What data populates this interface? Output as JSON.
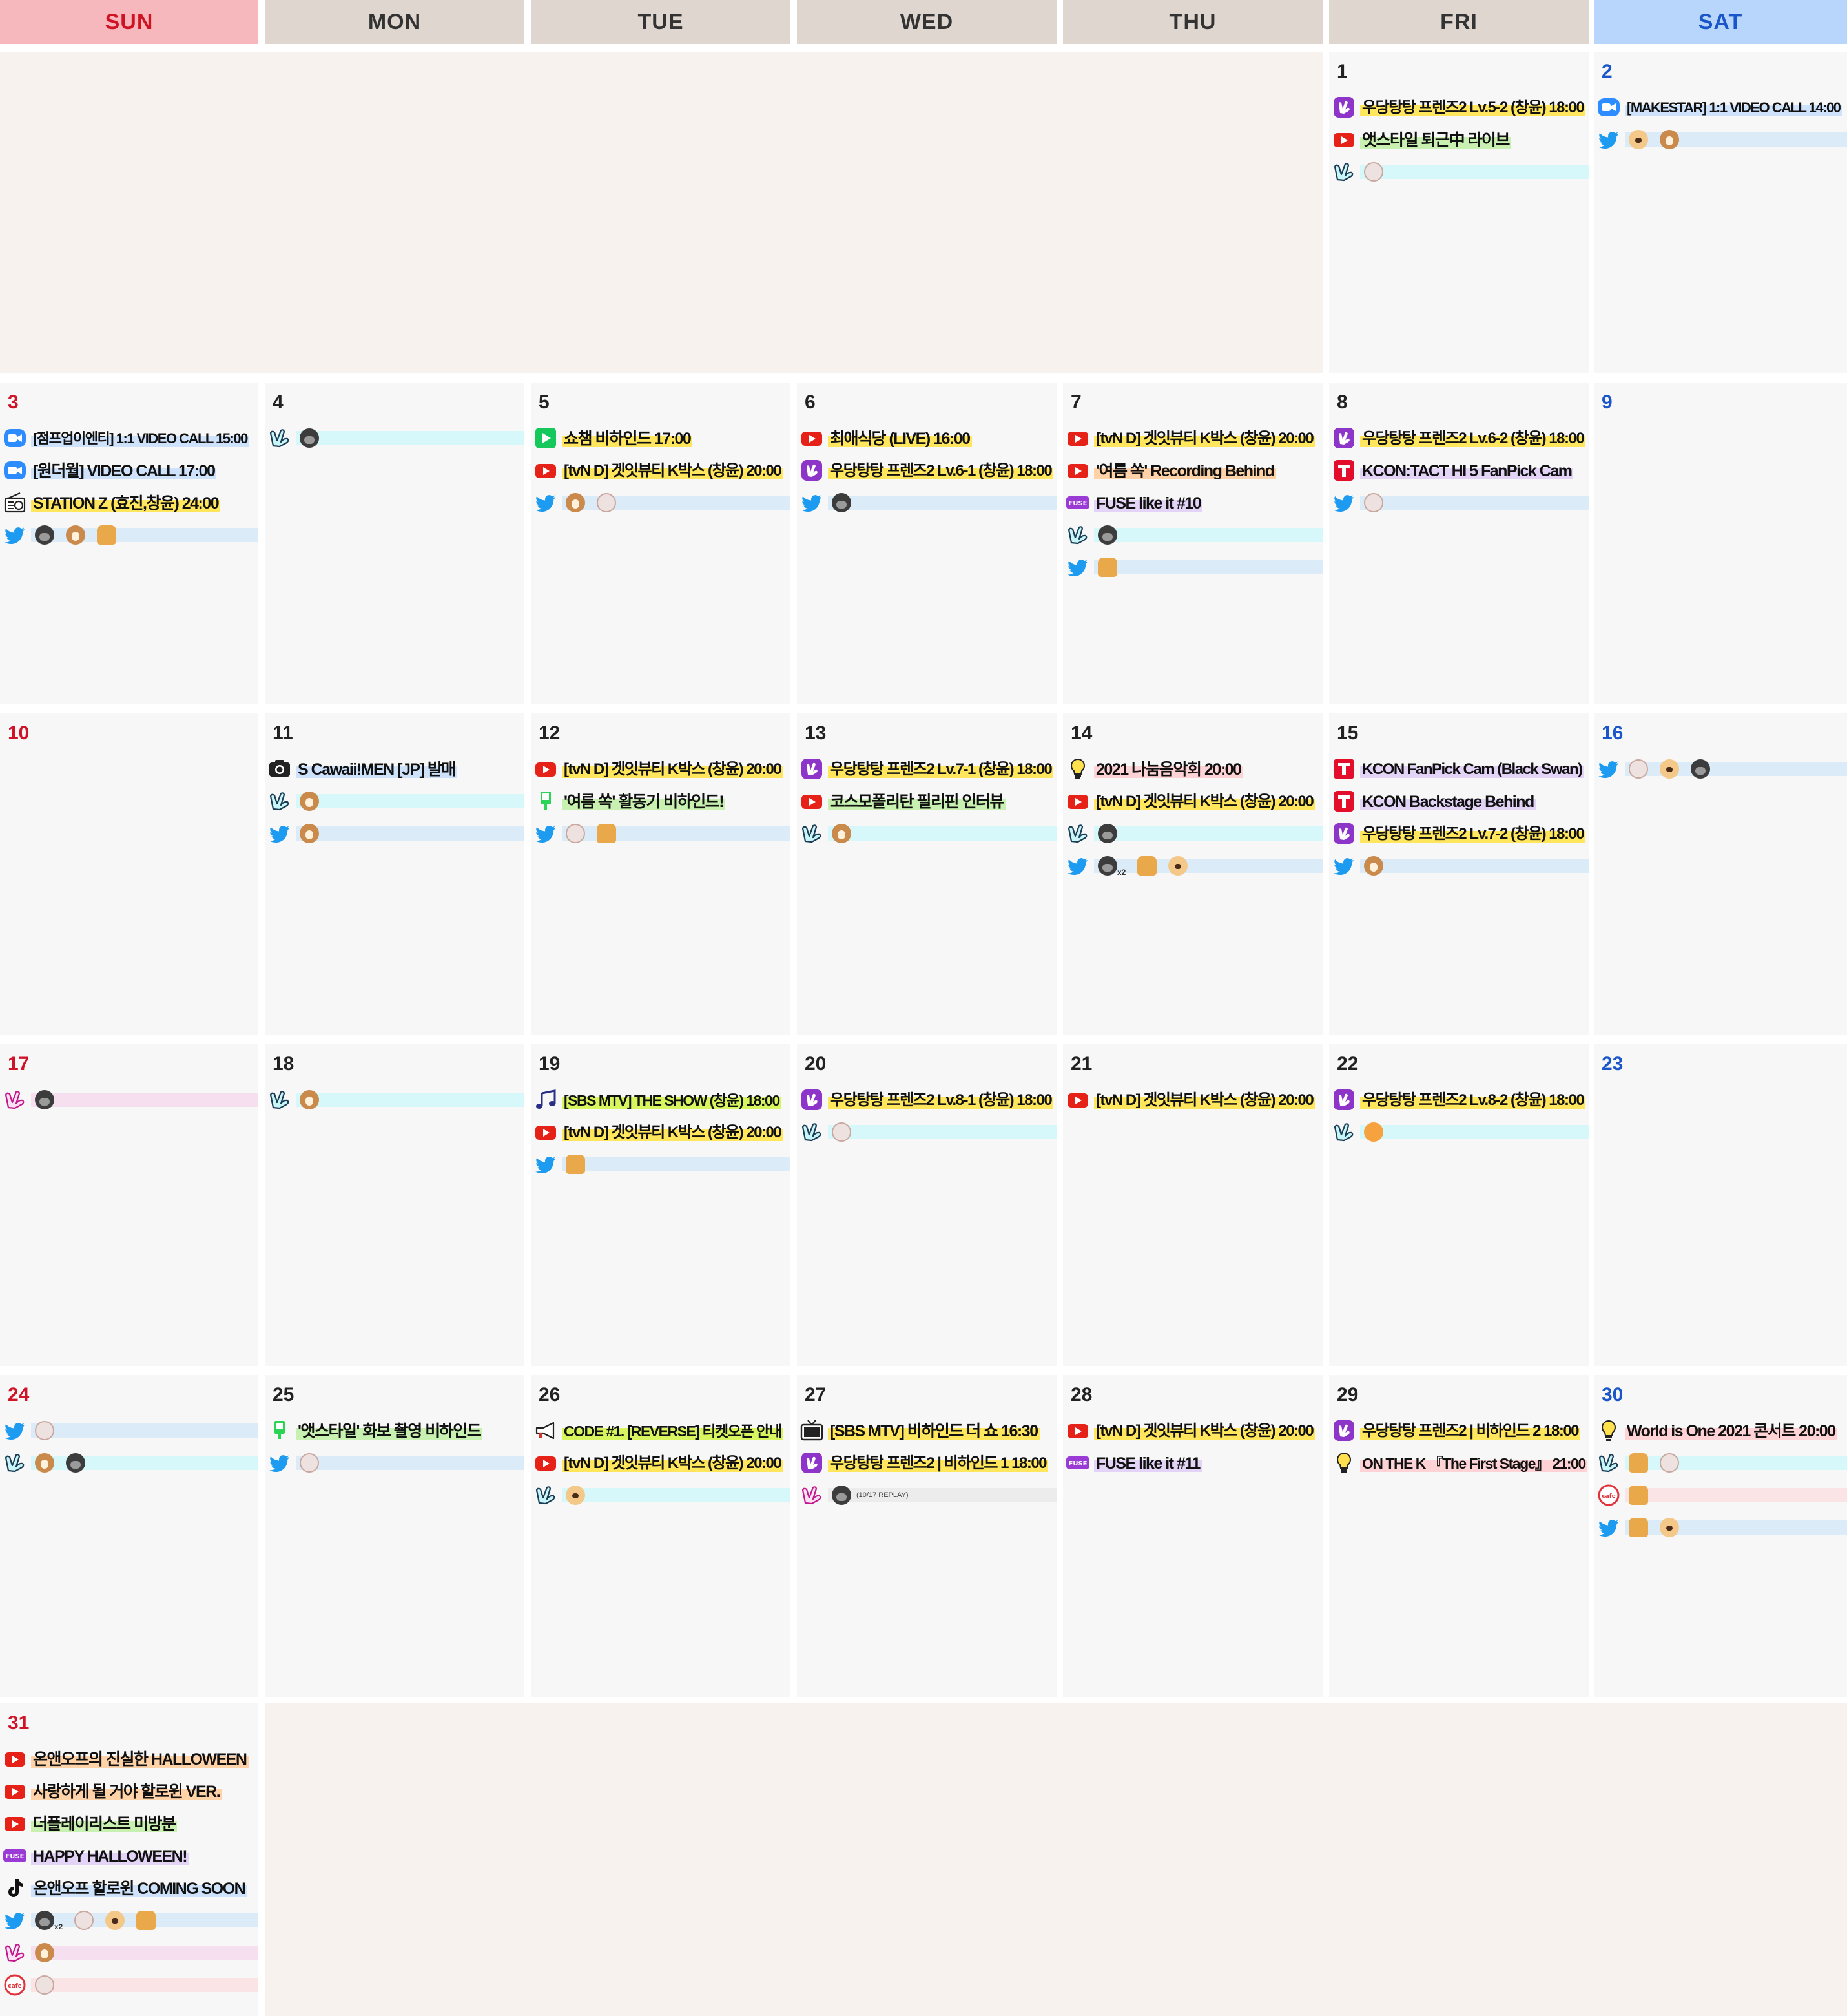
{
  "weekdays": [
    {
      "label": "SUN",
      "style": "sun"
    },
    {
      "label": "MON",
      "style": "plain"
    },
    {
      "label": "TUE",
      "style": "plain"
    },
    {
      "label": "WED",
      "style": "plain"
    },
    {
      "label": "THU",
      "style": "plain"
    },
    {
      "label": "FRI",
      "style": "plain"
    },
    {
      "label": "SAT",
      "style": "sat"
    }
  ],
  "colors": {
    "sunday": "#d01323",
    "saturday": "#1a56c9",
    "header_bg": "#e0d6d0",
    "sun_header_bg": "#f7b8bd",
    "sat_header_bg": "#b8d6fb"
  },
  "weeks": [
    {
      "days": [
        null,
        null,
        null,
        null,
        null,
        {
          "day": "1",
          "events": [
            {
              "icon": "vlive-plus-icon",
              "text": "우당탕탕 프렌즈2 Lv.5-2 (창윤) 18:00",
              "hl": "yellow"
            },
            {
              "icon": "youtube-icon",
              "text": "앳스타일 퇴근中 라이브",
              "hl": "green"
            },
            {
              "icon": "vlive-icon",
              "bar": "vl",
              "emojis": [
                "cat"
              ]
            }
          ]
        },
        {
          "day": "2",
          "events": [
            {
              "icon": "zoom-icon",
              "text": "[MAKESTAR] 1:1 VIDEO CALL 14:00",
              "hl": "blue"
            },
            {
              "icon": "twitter-icon",
              "bar": "tw",
              "emojis": [
                "dog",
                "deer"
              ]
            }
          ]
        }
      ]
    },
    {
      "days": [
        {
          "day": "3",
          "events": [
            {
              "icon": "zoom-icon",
              "text": "[점프업이엔티] 1:1 VIDEO CALL 15:00",
              "hl": "blue"
            },
            {
              "icon": "zoom-icon",
              "text": "[원더월] VIDEO CALL 17:00",
              "hl": "blue"
            },
            {
              "icon": "radio-icon",
              "text": "STATION Z (효진,창윤) 24:00",
              "hl": "yellow"
            },
            {
              "icon": "twitter-icon",
              "bar": "tw",
              "emojis": [
                "gorilla",
                "deer",
                "bread"
              ]
            }
          ]
        },
        {
          "day": "4",
          "events": [
            {
              "icon": "vlive-icon",
              "bar": "vl",
              "emojis": [
                "gorilla"
              ]
            }
          ]
        },
        {
          "day": "5",
          "events": [
            {
              "icon": "naver-now-icon",
              "text": "쇼챔 비하인드 17:00",
              "hl": "yellow"
            },
            {
              "icon": "youtube-icon",
              "text": "[tvN D] 겟잇뷰티 K박스 (창윤) 20:00",
              "hl": "yellow"
            },
            {
              "icon": "twitter-icon",
              "bar": "tw",
              "emojis": [
                "deer",
                "cat"
              ]
            }
          ]
        },
        {
          "day": "6",
          "events": [
            {
              "icon": "youtube-icon",
              "text": "최애식당 (LIVE) 16:00",
              "hl": "yellow"
            },
            {
              "icon": "vlive-plus-icon",
              "text": "우당탕탕 프렌즈2 Lv.6-1 (창윤) 18:00",
              "hl": "yellow"
            },
            {
              "icon": "twitter-icon",
              "bar": "tw",
              "emojis": [
                "gorilla"
              ]
            }
          ]
        },
        {
          "day": "7",
          "events": [
            {
              "icon": "youtube-icon",
              "text": "[tvN D] 겟잇뷰티 K박스 (창윤) 20:00",
              "hl": "yellow"
            },
            {
              "icon": "youtube-icon",
              "text": "'여름 쏙' Recording Behind",
              "hl": "orange"
            },
            {
              "icon": "fuse-icon",
              "text": "FUSE like it #10",
              "hl": "purple"
            },
            {
              "icon": "vlive-icon",
              "bar": "vl",
              "emojis": [
                "gorilla"
              ]
            },
            {
              "icon": "twitter-icon",
              "bar": "tw",
              "emojis": [
                "bread"
              ]
            }
          ]
        },
        {
          "day": "8",
          "events": [
            {
              "icon": "vlive-plus-icon",
              "text": "우당탕탕 프렌즈2 Lv.6-2 (창윤) 18:00",
              "hl": "yellow"
            },
            {
              "icon": "tving-icon",
              "text": "KCON:TACT HI 5 FanPick Cam",
              "hl": "purple"
            },
            {
              "icon": "twitter-icon",
              "bar": "tw",
              "emojis": [
                "cat"
              ]
            }
          ]
        },
        {
          "day": "9",
          "events": []
        }
      ]
    },
    {
      "days": [
        {
          "day": "10",
          "events": []
        },
        {
          "day": "11",
          "events": [
            {
              "icon": "camera-icon",
              "text": "S Cawaii!MEN [JP] 발매",
              "hl": "blue"
            },
            {
              "icon": "vlive-icon",
              "bar": "vl",
              "emojis": [
                "deer"
              ]
            },
            {
              "icon": "twitter-icon",
              "bar": "tw",
              "emojis": [
                "deer"
              ]
            }
          ]
        },
        {
          "day": "12",
          "events": [
            {
              "icon": "youtube-icon",
              "text": "[tvN D] 겟잇뷰티 K박스 (창윤) 20:00",
              "hl": "yellow"
            },
            {
              "icon": "naver-tv-icon",
              "text": "'여름 쏙' 활동기 비하인드!",
              "hl": "green"
            },
            {
              "icon": "twitter-icon",
              "bar": "tw",
              "emojis": [
                "cat",
                "bread"
              ]
            }
          ]
        },
        {
          "day": "13",
          "events": [
            {
              "icon": "vlive-plus-icon",
              "text": "우당탕탕 프렌즈2 Lv.7-1 (창윤) 18:00",
              "hl": "yellow"
            },
            {
              "icon": "youtube-icon",
              "text": "코스모폴리탄 필리핀 인터뷰",
              "hl": "green"
            },
            {
              "icon": "vlive-icon",
              "bar": "vl",
              "emojis": [
                "deer"
              ]
            }
          ]
        },
        {
          "day": "14",
          "events": [
            {
              "icon": "bulb-icon",
              "text": "2021 나눔음악회 20:00",
              "hl": "pink"
            },
            {
              "icon": "youtube-icon",
              "text": "[tvN D] 겟잇뷰티 K박스 (창윤) 20:00",
              "hl": "yellow"
            },
            {
              "icon": "vlive-icon",
              "bar": "vl",
              "emojis": [
                "gorilla"
              ]
            },
            {
              "icon": "twitter-icon",
              "bar": "tw",
              "emojis": [
                "gorilla",
                "bread",
                "dog"
              ],
              "x2": "x2"
            }
          ]
        },
        {
          "day": "15",
          "events": [
            {
              "icon": "tving-icon",
              "text": "KCON FanPick Cam (Black Swan)",
              "hl": "purple"
            },
            {
              "icon": "tving-icon",
              "text": "KCON Backstage Behind",
              "hl": "purple"
            },
            {
              "icon": "vlive-plus-icon",
              "text": "우당탕탕 프렌즈2 Lv.7-2 (창윤) 18:00",
              "hl": "yellow"
            },
            {
              "icon": "twitter-icon",
              "bar": "tw",
              "emojis": [
                "deer"
              ]
            }
          ]
        },
        {
          "day": "16",
          "events": [
            {
              "icon": "twitter-icon",
              "bar": "tw",
              "emojis": [
                "cat",
                "dog",
                "gorilla"
              ]
            }
          ]
        }
      ]
    },
    {
      "days": [
        {
          "day": "17",
          "events": [
            {
              "icon": "vlive-star-icon",
              "bar": "star",
              "emojis": [
                "gorilla"
              ]
            }
          ]
        },
        {
          "day": "18",
          "events": [
            {
              "icon": "vlive-icon",
              "bar": "vl",
              "emojis": [
                "deer"
              ]
            }
          ]
        },
        {
          "day": "19",
          "events": [
            {
              "icon": "music-icon",
              "text": "[SBS MTV] THE SHOW (창윤) 18:00",
              "hl": "lime"
            },
            {
              "icon": "youtube-icon",
              "text": "[tvN D] 겟잇뷰티 K박스 (창윤) 20:00",
              "hl": "yellow"
            },
            {
              "icon": "twitter-icon",
              "bar": "tw",
              "emojis": [
                "bread"
              ]
            }
          ]
        },
        {
          "day": "20",
          "events": [
            {
              "icon": "vlive-plus-icon",
              "text": "우당탕탕 프렌즈2 Lv.8-1 (창윤) 18:00",
              "hl": "yellow"
            },
            {
              "icon": "vlive-icon",
              "bar": "vl",
              "emojis": [
                "cat"
              ]
            }
          ]
        },
        {
          "day": "21",
          "events": [
            {
              "icon": "youtube-icon",
              "text": "[tvN D] 겟잇뷰티 K박스 (창윤) 20:00",
              "hl": "yellow"
            }
          ]
        },
        {
          "day": "22",
          "events": [
            {
              "icon": "vlive-plus-icon",
              "text": "우당탕탕 프렌즈2 Lv.8-2 (창윤) 18:00",
              "hl": "yellow"
            },
            {
              "icon": "vlive-icon",
              "bar": "vl",
              "emojis": [
                "fox"
              ]
            }
          ]
        },
        {
          "day": "23",
          "events": []
        }
      ]
    },
    {
      "days": [
        {
          "day": "24",
          "events": [
            {
              "icon": "twitter-icon",
              "bar": "tw",
              "emojis": [
                "cat"
              ]
            },
            {
              "icon": "vlive-icon",
              "bar": "vl",
              "emojis": [
                "deer",
                "gorilla"
              ]
            }
          ]
        },
        {
          "day": "25",
          "events": [
            {
              "icon": "naver-tv-icon",
              "text": "'앳스타일' 화보 촬영 비하인드",
              "hl": "green"
            },
            {
              "icon": "twitter-icon",
              "bar": "tw",
              "emojis": [
                "cat"
              ]
            }
          ]
        },
        {
          "day": "26",
          "events": [
            {
              "icon": "megaphone-icon",
              "text": "CODE #1. [REVERSE] 티켓오픈 안내",
              "hl": "lime"
            },
            {
              "icon": "youtube-icon",
              "text": "[tvN D] 겟잇뷰티 K박스 (창윤) 20:00",
              "hl": "yellow"
            },
            {
              "icon": "vlive-icon",
              "bar": "vl",
              "emojis": [
                "dog"
              ]
            }
          ]
        },
        {
          "day": "27",
          "events": [
            {
              "icon": "tv-icon",
              "text": "[SBS MTV] 비하인드 더 쇼 16:30",
              "hl": "yellow"
            },
            {
              "icon": "vlive-plus-icon",
              "text": "우당탕탕 프렌즈2 | 비하인드 1 18:00",
              "hl": "yellow"
            },
            {
              "icon": "vlive-star-icon",
              "bar": "grey",
              "emojis": [
                "gorilla"
              ],
              "replay": "(10/17 REPLAY)"
            }
          ]
        },
        {
          "day": "28",
          "events": [
            {
              "icon": "youtube-icon",
              "text": "[tvN D] 겟잇뷰티 K박스 (창윤) 20:00",
              "hl": "yellow"
            },
            {
              "icon": "fuse-icon",
              "text": "FUSE like it #11",
              "hl": "purple"
            }
          ]
        },
        {
          "day": "29",
          "events": [
            {
              "icon": "vlive-plus-icon",
              "text": "우당탕탕 프렌즈2 | 비하인드 2 18:00",
              "hl": "yellow"
            },
            {
              "icon": "bulb-icon",
              "text": "ON THE K 『The First Stage』 21:00",
              "hl": "pink"
            }
          ]
        },
        {
          "day": "30",
          "events": [
            {
              "icon": "bulb-icon",
              "text": "World is One 2021 콘서트 20:00",
              "hl": "pink"
            },
            {
              "icon": "vlive-icon",
              "bar": "vl",
              "emojis": [
                "bread",
                "cat"
              ]
            },
            {
              "icon": "cafe-icon",
              "bar": "cafe",
              "emojis": [
                "bread"
              ]
            },
            {
              "icon": "twitter-icon",
              "bar": "tw",
              "emojis": [
                "bread",
                "dog"
              ]
            }
          ]
        }
      ]
    },
    {
      "days": [
        {
          "day": "31",
          "events": [
            {
              "icon": "youtube-icon",
              "text": "온앤오프의 진실한 HALLOWEEN",
              "hl": "orange"
            },
            {
              "icon": "youtube-icon",
              "text": "사랑하게 될 거야 할로윈 VER.",
              "hl": "orange"
            },
            {
              "icon": "youtube-icon",
              "text": "더플레이리스트 미방분",
              "hl": "green"
            },
            {
              "icon": "fuse-icon",
              "text": "HAPPY HALLOWEEN!",
              "hl": "purple"
            },
            {
              "icon": "tiktok-icon",
              "text": "온앤오프 할로윈 COMING SOON",
              "hl": "blue"
            },
            {
              "icon": "twitter-icon",
              "bar": "tw",
              "emojis": [
                "gorilla",
                "cat",
                "dog",
                "bread"
              ],
              "x2": "x2"
            },
            {
              "icon": "vlive-star-icon",
              "bar": "star",
              "emojis": [
                "deer"
              ]
            },
            {
              "icon": "cafe-icon",
              "bar": "cafe",
              "emojis": [
                "cat"
              ]
            }
          ]
        },
        null,
        null,
        null,
        null,
        null,
        null
      ]
    }
  ]
}
